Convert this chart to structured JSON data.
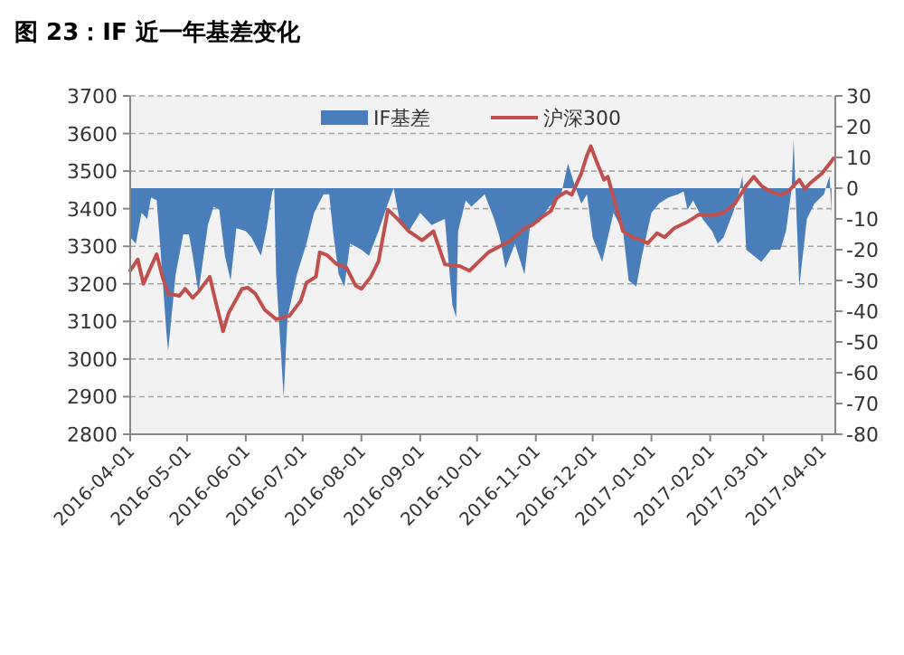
{
  "chart_data": {
    "type": "line",
    "title": "图 23：IF 近一年基差变化",
    "xlim": [
      "2016-04-01",
      "2017-04-08"
    ],
    "xticks": [
      "2016-04-01",
      "2016-05-01",
      "2016-06-01",
      "2016-07-01",
      "2016-08-01",
      "2016-09-01",
      "2016-10-01",
      "2016-11-01",
      "2016-12-01",
      "2017-01-01",
      "2017-02-01",
      "2017-03-01",
      "2017-04-01"
    ],
    "ylim": [
      2800,
      3700
    ],
    "yticks": [
      2800,
      2900,
      3000,
      3100,
      3200,
      3300,
      3400,
      3500,
      3600,
      3700
    ],
    "y2lim": [
      -80,
      30
    ],
    "y2ticks": [
      -80,
      -70,
      -60,
      -50,
      -40,
      -30,
      -20,
      -10,
      0,
      10,
      20,
      30
    ],
    "grid": "y",
    "legend": "top",
    "series": [
      {
        "name": "IF基差",
        "type": "area",
        "axis": "y2",
        "color": "#4a7ebb",
        "x": [
          "2016-04-01",
          "2016-04-04",
          "2016-04-07",
          "2016-04-10",
          "2016-04-12",
          "2016-04-15",
          "2016-04-17",
          "2016-04-20",
          "2016-04-21",
          "2016-04-25",
          "2016-04-29",
          "2016-05-02",
          "2016-05-04",
          "2016-05-07",
          "2016-05-12",
          "2016-05-15",
          "2016-05-18",
          "2016-05-21",
          "2016-05-24",
          "2016-05-27",
          "2016-06-01",
          "2016-06-04",
          "2016-06-09",
          "2016-06-12",
          "2016-06-15",
          "2016-06-16",
          "2016-06-17",
          "2016-06-21",
          "2016-06-23",
          "2016-06-28",
          "2016-07-03",
          "2016-07-07",
          "2016-07-12",
          "2016-07-15",
          "2016-07-17",
          "2016-07-20",
          "2016-07-23",
          "2016-07-26",
          "2016-08-01",
          "2016-08-05",
          "2016-08-10",
          "2016-08-15",
          "2016-08-18",
          "2016-08-21",
          "2016-08-26",
          "2016-09-01",
          "2016-09-07",
          "2016-09-14",
          "2016-09-18",
          "2016-09-20",
          "2016-09-21",
          "2016-09-25",
          "2016-09-28",
          "2016-10-05",
          "2016-10-10",
          "2016-10-13",
          "2016-10-16",
          "2016-10-21",
          "2016-10-26",
          "2016-10-29",
          "2016-11-03",
          "2016-11-08",
          "2016-11-14",
          "2016-11-18",
          "2016-11-22",
          "2016-11-25",
          "2016-11-28",
          "2016-12-01",
          "2016-12-06",
          "2016-12-12",
          "2016-12-17",
          "2016-12-20",
          "2016-12-24",
          "2016-12-27",
          "2017-01-01",
          "2017-01-05",
          "2017-01-10",
          "2017-01-15",
          "2017-01-18",
          "2017-01-20",
          "2017-01-23",
          "2017-01-28",
          "2017-02-02",
          "2017-02-05",
          "2017-02-08",
          "2017-02-13",
          "2017-02-16",
          "2017-02-18",
          "2017-02-20",
          "2017-02-24",
          "2017-02-28",
          "2017-03-05",
          "2017-03-10",
          "2017-03-13",
          "2017-03-16",
          "2017-03-17",
          "2017-03-20",
          "2017-03-24",
          "2017-03-28",
          "2017-04-02",
          "2017-04-05",
          "2017-04-06"
        ],
        "values": [
          -16,
          -18,
          -8,
          -10,
          -3,
          -4,
          -20,
          -46,
          -53,
          -28,
          -15,
          -15,
          -22,
          -34,
          -12,
          -6,
          -7,
          -22,
          -30,
          -13,
          -14,
          -16,
          -22,
          -13,
          -1,
          0,
          -28,
          -68,
          -42,
          -28,
          -18,
          -8,
          -2,
          -2,
          -14,
          -28,
          -32,
          -18,
          -20,
          -22,
          -14,
          -5,
          0,
          -10,
          -14,
          -8,
          -12,
          -10,
          -38,
          -42,
          -14,
          -4,
          -6,
          -2,
          -10,
          -16,
          -26,
          -18,
          -28,
          -12,
          -11,
          -6,
          -3,
          8,
          0,
          -5,
          -2,
          -16,
          -24,
          -8,
          -14,
          -30,
          -32,
          -22,
          -8,
          -5,
          -3,
          -2,
          -1,
          -7,
          -4,
          -10,
          -14,
          -18,
          -16,
          -8,
          -2,
          4,
          -20,
          -22,
          -24,
          -20,
          -20,
          -14,
          0,
          16,
          -32,
          -10,
          -5,
          -2,
          4,
          -8
        ]
      },
      {
        "name": "沪深300",
        "type": "line",
        "color": "#c0504d",
        "x": [
          "2016-04-01",
          "2016-04-05",
          "2016-04-08",
          "2016-04-11",
          "2016-04-15",
          "2016-04-18",
          "2016-04-21",
          "2016-04-27",
          "2016-04-30",
          "2016-05-04",
          "2016-05-07",
          "2016-05-13",
          "2016-05-16",
          "2016-05-20",
          "2016-05-23",
          "2016-05-30",
          "2016-06-02",
          "2016-06-06",
          "2016-06-11",
          "2016-06-17",
          "2016-06-24",
          "2016-06-30",
          "2016-07-03",
          "2016-07-08",
          "2016-07-10",
          "2016-07-14",
          "2016-07-19",
          "2016-07-24",
          "2016-07-29",
          "2016-08-01",
          "2016-08-06",
          "2016-08-10",
          "2016-08-15",
          "2016-08-20",
          "2016-08-26",
          "2016-09-02",
          "2016-09-08",
          "2016-09-14",
          "2016-09-22",
          "2016-09-27",
          "2016-10-07",
          "2016-10-13",
          "2016-10-19",
          "2016-10-26",
          "2016-10-30",
          "2016-11-03",
          "2016-11-09",
          "2016-11-12",
          "2016-11-17",
          "2016-11-20",
          "2016-11-25",
          "2016-11-28",
          "2016-11-30",
          "2016-12-03",
          "2016-12-07",
          "2016-12-09",
          "2016-12-12",
          "2016-12-17",
          "2016-12-22",
          "2016-12-27",
          "2016-12-30",
          "2017-01-04",
          "2017-01-08",
          "2017-01-13",
          "2017-01-20",
          "2017-01-26",
          "2017-02-01",
          "2017-02-08",
          "2017-02-14",
          "2017-02-17",
          "2017-02-20",
          "2017-02-24",
          "2017-02-28",
          "2017-03-05",
          "2017-03-10",
          "2017-03-14",
          "2017-03-17",
          "2017-03-20",
          "2017-03-23",
          "2017-03-26",
          "2017-04-01",
          "2017-04-06",
          "2017-04-07"
        ],
        "values": [
          3235,
          3265,
          3200,
          3235,
          3279,
          3219,
          3174,
          3168,
          3187,
          3163,
          3179,
          3219,
          3155,
          3074,
          3123,
          3187,
          3190,
          3174,
          3131,
          3106,
          3115,
          3155,
          3203,
          3219,
          3284,
          3276,
          3252,
          3244,
          3195,
          3187,
          3219,
          3260,
          3397,
          3373,
          3340,
          3316,
          3340,
          3252,
          3247,
          3235,
          3284,
          3300,
          3316,
          3348,
          3356,
          3373,
          3394,
          3429,
          3445,
          3437,
          3494,
          3542,
          3566,
          3526,
          3477,
          3485,
          3429,
          3340,
          3324,
          3316,
          3308,
          3335,
          3324,
          3348,
          3365,
          3384,
          3381,
          3389,
          3413,
          3437,
          3461,
          3485,
          3461,
          3445,
          3437,
          3445,
          3461,
          3477,
          3453,
          3469,
          3494,
          3526,
          3534
        ]
      }
    ]
  }
}
